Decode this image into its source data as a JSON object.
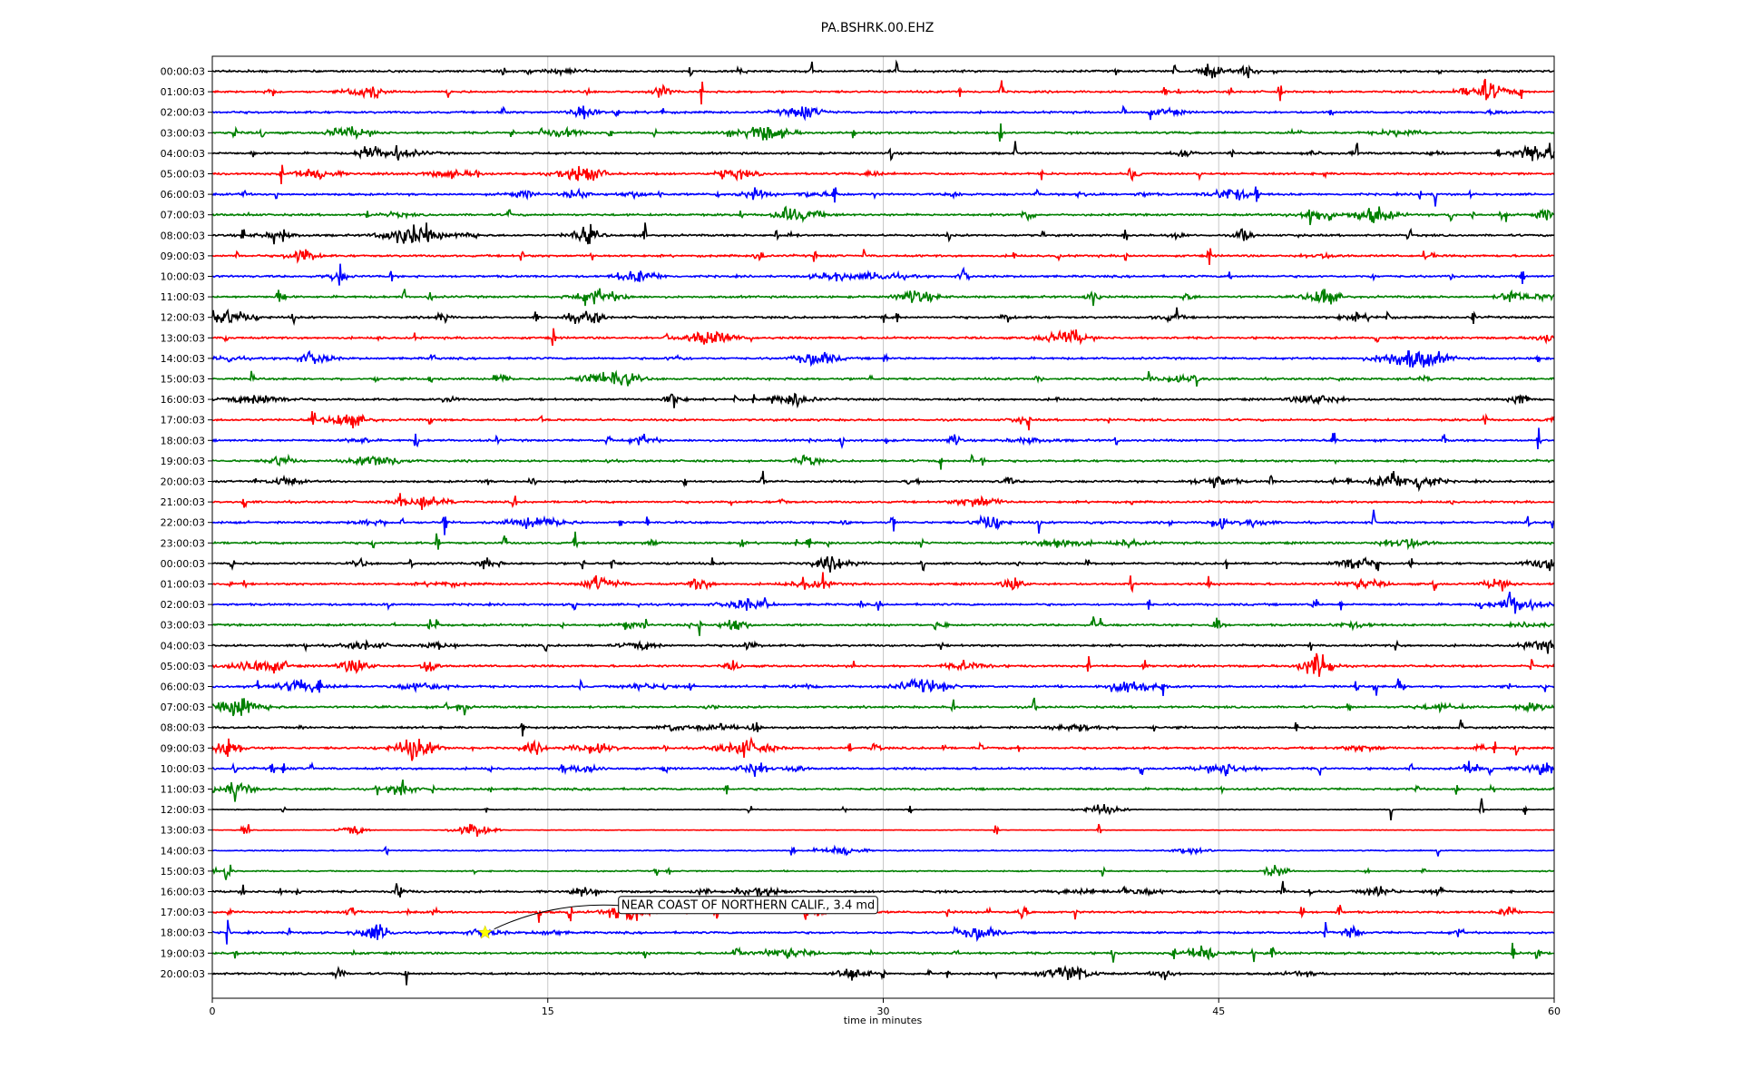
{
  "chart_data": {
    "type": "line",
    "title": "PA.BSHRK.00.EHZ",
    "xlabel": "time in minutes",
    "ylabel": "",
    "xlim": [
      0,
      60
    ],
    "x_ticks": [
      "0",
      "15",
      "30",
      "45",
      "60"
    ],
    "grid": "vertical lines at 15, 30, 45",
    "row_labels": [
      "00:00:03",
      "01:00:03",
      "02:00:03",
      "03:00:03",
      "04:00:03",
      "05:00:03",
      "06:00:03",
      "07:00:03",
      "08:00:03",
      "09:00:03",
      "10:00:03",
      "11:00:03",
      "12:00:03",
      "13:00:03",
      "14:00:03",
      "15:00:03",
      "16:00:03",
      "17:00:03",
      "18:00:03",
      "19:00:03",
      "20:00:03",
      "21:00:03",
      "22:00:03",
      "23:00:03",
      "00:00:03",
      "01:00:03",
      "02:00:03",
      "03:00:03",
      "04:00:03",
      "05:00:03",
      "06:00:03",
      "07:00:03",
      "08:00:03",
      "09:00:03",
      "10:00:03",
      "11:00:03",
      "12:00:03",
      "13:00:03",
      "14:00:03",
      "15:00:03",
      "16:00:03",
      "17:00:03",
      "18:00:03",
      "19:00:03",
      "20:00:03"
    ],
    "trace_colors": [
      "#000000",
      "#ff0000",
      "#0000ff",
      "#008000"
    ],
    "event": {
      "label": "NEAR COAST OF NORTHERN CALIF., 3.4 md",
      "row_label": "18:00:03",
      "minute": 12.2,
      "marker_color": "#ffff00"
    }
  }
}
